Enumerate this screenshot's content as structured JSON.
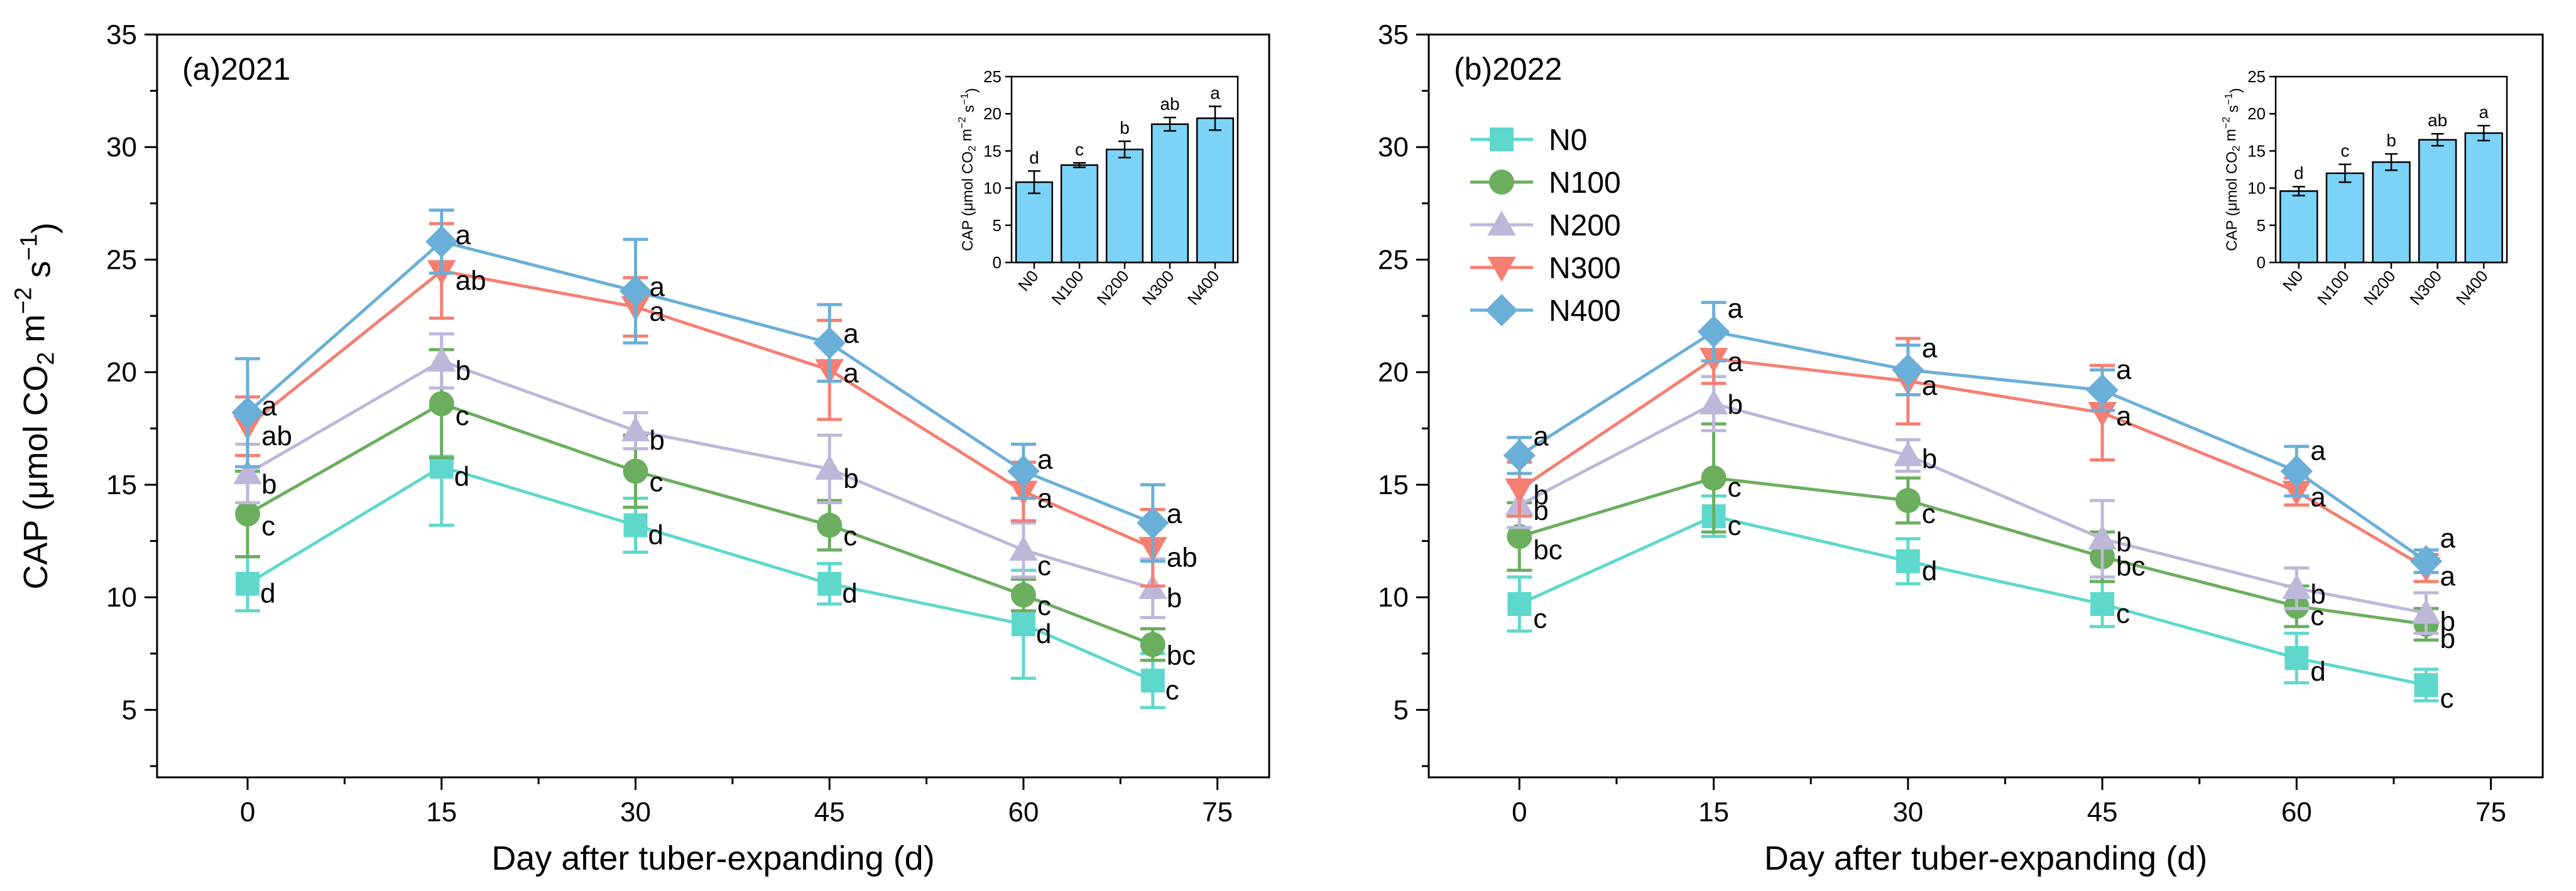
{
  "colors": {
    "N0": "#5ED8CC",
    "N100": "#6BAE5E",
    "N200": "#BDB8DA",
    "N300": "#F47F72",
    "N400": "#6AAFD8",
    "inset_bar": "#7BD3F7"
  },
  "chart_data": [
    {
      "type": "line",
      "title": "(a)2021",
      "xlabel": "Day after tuber-expanding (d)",
      "ylabel_parts": {
        "pre": "CAP (μmol CO",
        "sub": "2",
        "mid1": " m",
        "sup1": "−2",
        "mid2": " s",
        "sup2": "−1",
        "post": ")"
      },
      "xlim": [
        -7,
        79
      ],
      "ylim": [
        2,
        35
      ],
      "xticks": [
        0,
        15,
        30,
        45,
        60,
        75
      ],
      "yticks": [
        5,
        10,
        15,
        20,
        25,
        30,
        35
      ],
      "x": [
        0,
        15,
        30,
        45,
        60,
        70
      ],
      "series": [
        {
          "name": "N0",
          "marker": "square",
          "values": [
            10.6,
            15.8,
            13.2,
            10.6,
            8.8,
            6.3
          ],
          "err": [
            1.2,
            2.6,
            1.2,
            0.9,
            2.4,
            1.2
          ],
          "letters": [
            "d",
            "d",
            "d",
            "d",
            "d",
            "c"
          ]
        },
        {
          "name": "N100",
          "marker": "circle",
          "values": [
            13.7,
            18.6,
            15.6,
            13.2,
            10.1,
            7.9
          ],
          "err": [
            1.9,
            2.4,
            1.6,
            1.1,
            0.7,
            0.7
          ],
          "letters": [
            "c",
            "c",
            "c",
            "c",
            "c",
            "bc"
          ]
        },
        {
          "name": "N200",
          "marker": "triangle-up",
          "values": [
            15.5,
            20.5,
            17.4,
            15.7,
            12.1,
            10.4
          ],
          "err": [
            1.3,
            1.2,
            0.8,
            1.5,
            1.2,
            1.3
          ],
          "letters": [
            "b",
            "b",
            "b",
            "b",
            "c",
            "b"
          ]
        },
        {
          "name": "N300",
          "marker": "triangle-down",
          "values": [
            17.6,
            24.5,
            22.9,
            20.1,
            14.7,
            12.2
          ],
          "err": [
            1.3,
            2.1,
            1.3,
            2.2,
            1.3,
            1.7
          ],
          "letters": [
            "ab",
            "ab",
            "a",
            "a",
            "a",
            "ab"
          ]
        },
        {
          "name": "N400",
          "marker": "diamond",
          "values": [
            18.2,
            25.8,
            23.6,
            21.3,
            15.6,
            13.3
          ],
          "err": [
            2.4,
            1.4,
            2.3,
            1.7,
            1.2,
            1.7
          ],
          "letters": [
            "a",
            "a",
            "a",
            "a",
            "a",
            "a"
          ]
        }
      ],
      "inset": {
        "type": "bar",
        "categories": [
          "N0",
          "N100",
          "N200",
          "N300",
          "N400"
        ],
        "values": [
          10.8,
          13.1,
          15.2,
          18.6,
          19.4
        ],
        "err": [
          1.5,
          0.3,
          1.1,
          0.9,
          1.6
        ],
        "letters": [
          "d",
          "c",
          "b",
          "ab",
          "a"
        ],
        "ylim": [
          0,
          25
        ],
        "yticks": [
          0,
          5,
          10,
          15,
          20,
          25
        ],
        "ylabel_parts": {
          "pre": "CAP (μmol CO",
          "sub": "2",
          "mid1": " m",
          "sup1": "−2",
          "mid2": " s",
          "sup2": "−1",
          "post": ")"
        }
      }
    },
    {
      "type": "line",
      "title": "(b)2022",
      "xlabel": "Day after tuber-expanding (d)",
      "xlim": [
        -7,
        79
      ],
      "ylim": [
        2,
        35
      ],
      "xticks": [
        0,
        15,
        30,
        45,
        60,
        75
      ],
      "yticks": [
        5,
        10,
        15,
        20,
        25,
        30,
        35
      ],
      "x": [
        0,
        15,
        30,
        45,
        60,
        70
      ],
      "legend": {
        "position": "top-left",
        "entries": [
          "N0",
          "N100",
          "N200",
          "N300",
          "N400"
        ]
      },
      "series": [
        {
          "name": "N0",
          "marker": "square",
          "values": [
            9.7,
            13.6,
            11.6,
            9.7,
            7.3,
            6.1
          ],
          "err": [
            1.2,
            0.9,
            1.0,
            1.0,
            1.1,
            0.7
          ],
          "letters": [
            "c",
            "c",
            "d",
            "c",
            "d",
            "c"
          ]
        },
        {
          "name": "N100",
          "marker": "circle",
          "values": [
            12.7,
            15.3,
            14.3,
            11.8,
            9.6,
            8.8
          ],
          "err": [
            1.5,
            2.4,
            1.0,
            1.1,
            0.9,
            0.7
          ],
          "letters": [
            "bc",
            "c",
            "c",
            "bc",
            "c",
            "b"
          ]
        },
        {
          "name": "N200",
          "marker": "triangle-up",
          "values": [
            14.1,
            18.6,
            16.3,
            12.6,
            10.4,
            9.3
          ],
          "err": [
            1.0,
            1.2,
            0.7,
            1.7,
            0.9,
            0.9
          ],
          "letters": [
            "b",
            "b",
            "b",
            "b",
            "b",
            "b"
          ]
        },
        {
          "name": "N300",
          "marker": "triangle-down",
          "values": [
            14.8,
            20.6,
            19.6,
            18.2,
            14.7,
            11.3
          ],
          "err": [
            1.2,
            1.1,
            1.9,
            2.1,
            0.6,
            0.6
          ],
          "letters": [
            "b",
            "a",
            "a",
            "a",
            "a",
            "a"
          ]
        },
        {
          "name": "N400",
          "marker": "diamond",
          "values": [
            16.3,
            21.8,
            20.1,
            19.2,
            15.6,
            11.6
          ],
          "err": [
            0.8,
            1.3,
            1.1,
            0.9,
            1.1,
            0.5
          ],
          "letters": [
            "a",
            "a",
            "a",
            "a",
            "a",
            "a"
          ]
        }
      ],
      "inset": {
        "type": "bar",
        "categories": [
          "N0",
          "N100",
          "N200",
          "N300",
          "N400"
        ],
        "values": [
          9.6,
          12.0,
          13.5,
          16.5,
          17.4
        ],
        "err": [
          0.6,
          1.2,
          1.1,
          0.8,
          1.0
        ],
        "letters": [
          "d",
          "c",
          "b",
          "ab",
          "a"
        ],
        "ylim": [
          0,
          25
        ],
        "yticks": [
          0,
          5,
          10,
          15,
          20,
          25
        ],
        "ylabel_parts": {
          "pre": "CAP (μmol CO",
          "sub": "2",
          "mid1": " m",
          "sup1": "−2",
          "mid2": " s",
          "sup2": "−1",
          "post": ")"
        }
      }
    }
  ]
}
